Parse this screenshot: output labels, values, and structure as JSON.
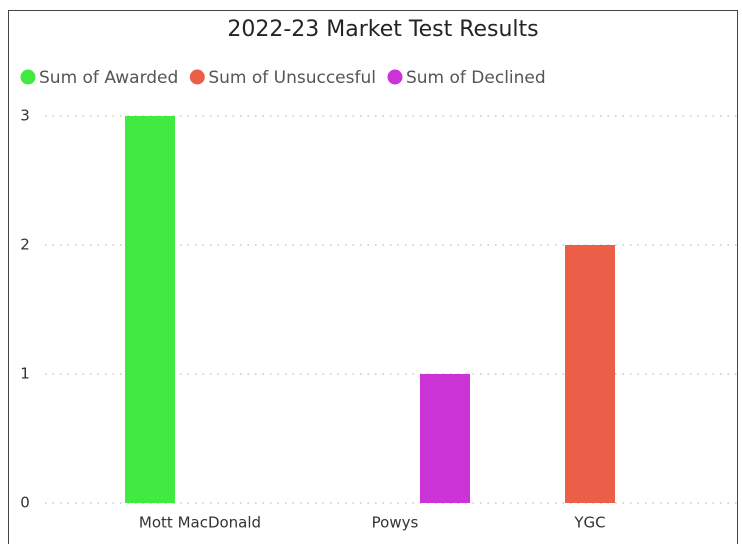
{
  "chart_data": {
    "type": "bar",
    "title": "2022-23 Market Test Results",
    "categories": [
      "Mott MacDonald",
      "Powys",
      "YGC"
    ],
    "series": [
      {
        "name": "Sum of Awarded",
        "color": "#41ea41",
        "values": [
          3,
          0,
          0
        ]
      },
      {
        "name": "Sum of Unsuccesful",
        "color": "#eb5f49",
        "values": [
          0,
          0,
          2
        ]
      },
      {
        "name": "Sum of Declined",
        "color": "#cc33d6",
        "values": [
          0,
          1,
          0
        ]
      }
    ],
    "ylim": [
      0,
      3
    ],
    "yticks": [
      0,
      1,
      2,
      3
    ],
    "grid": true
  }
}
